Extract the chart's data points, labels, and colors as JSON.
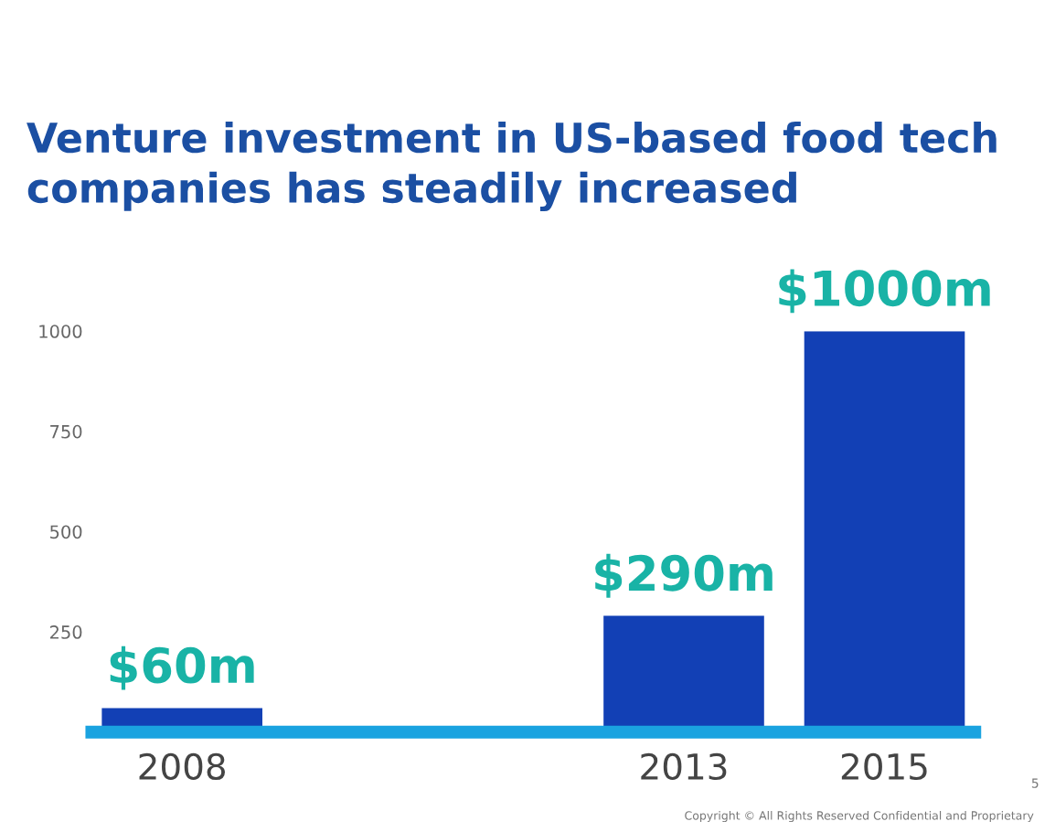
{
  "chart_data": {
    "type": "bar",
    "title": "Venture investment in US-based food tech\ncompanies has steadily increased",
    "x": [
      2008,
      2013,
      2015
    ],
    "values": [
      60,
      290,
      1000
    ],
    "value_labels": [
      "$60m",
      "$290m",
      "$1000m"
    ],
    "color": "#1240b5",
    "xlim": [
      2007.1,
      2015.9
    ],
    "xticks": [
      2008,
      2013,
      2015
    ],
    "ylim": [
      0,
      1000
    ],
    "yticks": [
      250,
      500,
      750,
      1000
    ],
    "grid": false,
    "annotations": [
      "Copyright © All Rights Reserved Confidential and Proprietary",
      "5"
    ]
  }
}
